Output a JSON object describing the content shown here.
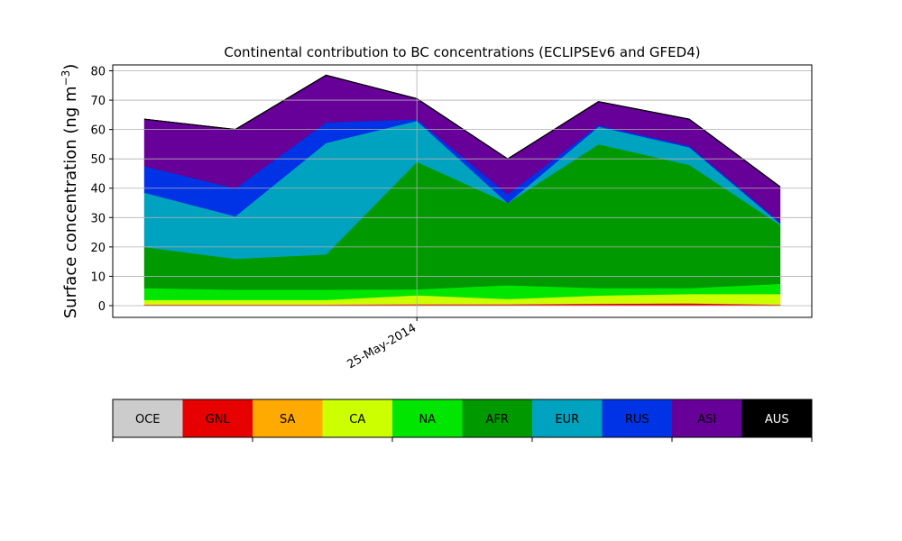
{
  "chart_data": {
    "type": "area",
    "stacked": true,
    "title": "Continental contribution to BC concentrations (ECLIPSEv6 and GFED4)",
    "ylabel": "Surface concentration (ng m",
    "ylabel_sup": "−3",
    "ylabel_end": ")",
    "ylim": [
      -4,
      82
    ],
    "yticks": [
      0,
      10,
      20,
      30,
      40,
      50,
      60,
      70,
      80
    ],
    "grid": true,
    "x_tick_label": "25-May-2014",
    "x_positions": [
      1,
      2,
      3,
      4,
      5,
      6,
      7,
      8
    ],
    "x_tick_position": 4,
    "legend_placement": "bottom colorbar",
    "series": [
      {
        "name": "OCE",
        "color": "#cccccc",
        "values": [
          0.2,
          0.2,
          0.2,
          0.2,
          0.2,
          0.2,
          0.2,
          0.2
        ]
      },
      {
        "name": "GNL",
        "color": "#e60000",
        "values": [
          0.2,
          0.2,
          0.2,
          0.3,
          0.3,
          0.5,
          0.6,
          0.2
        ]
      },
      {
        "name": "SA",
        "color": "#ffaa00",
        "values": [
          0.1,
          0.1,
          0.1,
          0.1,
          0.1,
          0.1,
          0.1,
          0.1
        ]
      },
      {
        "name": "CA",
        "color": "#ccff00",
        "values": [
          1.5,
          1.5,
          1.5,
          3.0,
          1.7,
          2.7,
          3.1,
          3.5
        ]
      },
      {
        "name": "NA",
        "color": "#00e600",
        "values": [
          4.0,
          3.5,
          3.5,
          2.0,
          4.7,
          2.5,
          2.0,
          3.5
        ]
      },
      {
        "name": "AFR",
        "color": "#009900",
        "values": [
          14.0,
          10.5,
          12.0,
          43.4,
          28.0,
          49.0,
          42.0,
          20.0
        ]
      },
      {
        "name": "EUR",
        "color": "#00a3bf",
        "values": [
          18.5,
          14.5,
          38.0,
          14.0,
          0.0,
          6.0,
          6.0,
          0.5
        ]
      },
      {
        "name": "RUS",
        "color": "#0033e6",
        "values": [
          9.0,
          9.5,
          7.0,
          0.5,
          3.0,
          0.5,
          0.5,
          0.5
        ]
      },
      {
        "name": "ASI",
        "color": "#660099",
        "values": [
          16.0,
          20.0,
          16.0,
          7.0,
          12.0,
          8.0,
          9.0,
          12.0
        ]
      },
      {
        "name": "AUS",
        "color": "#000000",
        "values": [
          0.0,
          0.0,
          0.0,
          0.0,
          0.0,
          0.0,
          0.0,
          0.0
        ]
      }
    ]
  }
}
